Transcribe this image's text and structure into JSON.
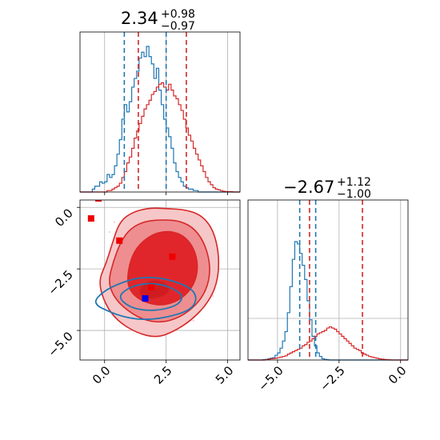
{
  "chart_data": [
    {
      "type": "histogram",
      "panel": "marginal-x",
      "title": {
        "median": "2.34",
        "plus": "+0.98",
        "minus": "−0.97"
      },
      "xlim": [
        -1.0,
        5.5
      ],
      "grid": true,
      "series": [
        {
          "color": "#1f77b4",
          "bin_start": -1.0,
          "bin_width": 0.1,
          "density": [
            0,
            0,
            0,
            0,
            0,
            0.02,
            0.04,
            0.04,
            0.07,
            0.06,
            0.07,
            0.12,
            0.1,
            0.12,
            0.18,
            0.26,
            0.36,
            0.5,
            0.6,
            0.55,
            0.62,
            0.72,
            0.78,
            0.83,
            0.92,
            0.96,
            0.93,
            1.0,
            0.93,
            0.88,
            0.78,
            0.85,
            0.7,
            0.6,
            0.5,
            0.44,
            0.38,
            0.3,
            0.2,
            0.14,
            0.1,
            0.07,
            0.04,
            0.03,
            0.02,
            0.02,
            0.01,
            0.01,
            0,
            0,
            0,
            0,
            0,
            0,
            0,
            0,
            0,
            0,
            0,
            0,
            0,
            0,
            0,
            0,
            0
          ],
          "quantile_lines": [
            0.8,
            2.5
          ]
        },
        {
          "color": "#d62728",
          "bin_start": -1.0,
          "bin_width": 0.1,
          "density": [
            0,
            0,
            0,
            0,
            0,
            0,
            0,
            0,
            0,
            0,
            0,
            0.01,
            0.01,
            0.02,
            0.03,
            0.04,
            0.06,
            0.1,
            0.14,
            0.2,
            0.24,
            0.3,
            0.37,
            0.42,
            0.47,
            0.52,
            0.57,
            0.6,
            0.63,
            0.67,
            0.69,
            0.72,
            0.74,
            0.75,
            0.72,
            0.7,
            0.74,
            0.7,
            0.66,
            0.64,
            0.6,
            0.56,
            0.5,
            0.44,
            0.39,
            0.35,
            0.3,
            0.26,
            0.22,
            0.18,
            0.14,
            0.1,
            0.07,
            0.05,
            0.03,
            0.02,
            0.015,
            0.01,
            0.005,
            0.003,
            0.002,
            0.002,
            0,
            0,
            0
          ],
          "quantile_lines": [
            1.37,
            3.32
          ]
        }
      ]
    },
    {
      "type": "histogram",
      "panel": "marginal-y",
      "title": {
        "median": "−2.67",
        "plus": "+1.12",
        "minus": "−1.00"
      },
      "xlim": [
        -6.2,
        0.3
      ],
      "grid": true,
      "series": [
        {
          "color": "#1f77b4",
          "bin_start": -6.2,
          "bin_width": 0.1,
          "density": [
            0,
            0,
            0,
            0,
            0,
            0,
            0.003,
            0.005,
            0.01,
            0.015,
            0.02,
            0.04,
            0.06,
            0.1,
            0.16,
            0.24,
            0.4,
            0.62,
            0.85,
            1.0,
            0.98,
            0.9,
            0.8,
            0.68,
            0.5,
            0.34,
            0.2,
            0.12,
            0.06,
            0.03,
            0.01,
            0.005,
            0.002,
            0,
            0,
            0,
            0,
            0,
            0,
            0,
            0,
            0,
            0,
            0,
            0,
            0,
            0,
            0,
            0,
            0,
            0,
            0,
            0,
            0,
            0,
            0,
            0,
            0,
            0,
            0,
            0,
            0,
            0,
            0,
            0
          ],
          "quantile_lines": [
            -4.1,
            -3.45
          ]
        },
        {
          "color": "#d62728",
          "bin_start": -6.2,
          "bin_width": 0.1,
          "density": [
            0,
            0,
            0,
            0,
            0,
            0,
            0,
            0.003,
            0.005,
            0.01,
            0.012,
            0.015,
            0.02,
            0.025,
            0.03,
            0.035,
            0.05,
            0.06,
            0.07,
            0.08,
            0.09,
            0.1,
            0.12,
            0.13,
            0.15,
            0.16,
            0.18,
            0.2,
            0.22,
            0.23,
            0.24,
            0.25,
            0.27,
            0.28,
            0.27,
            0.26,
            0.24,
            0.22,
            0.2,
            0.18,
            0.16,
            0.14,
            0.12,
            0.1,
            0.09,
            0.08,
            0.06,
            0.05,
            0.04,
            0.03,
            0.025,
            0.02,
            0.015,
            0.01,
            0.008,
            0.005,
            0.003,
            0.002,
            0,
            0,
            0,
            0,
            0,
            0,
            0
          ],
          "quantile_lines": [
            -3.7,
            -1.55
          ]
        }
      ]
    },
    {
      "type": "contour",
      "panel": "joint",
      "xlim": [
        -1.0,
        5.5
      ],
      "ylim": [
        -6.2,
        0.3
      ],
      "xticks": [
        "0.0",
        "2.5",
        "5.0"
      ],
      "yticks": [
        "0.0",
        "−2.5",
        "−5.0"
      ],
      "grid": true,
      "contour_sets": [
        {
          "color": "#d62728",
          "filled": true,
          "levels": [
            {
              "fill": "#f6c7c8",
              "points": [
                [
                  -0.25,
                  -3.0
                ],
                [
                  0.05,
                  -2.3
                ],
                [
                  0.3,
                  -1.5
                ],
                [
                  0.6,
                  -0.6
                ],
                [
                  1.1,
                  -0.2
                ],
                [
                  1.8,
                  -0.02
                ],
                [
                  2.6,
                  -0.05
                ],
                [
                  3.3,
                  -0.1
                ],
                [
                  3.9,
                  -0.3
                ],
                [
                  4.35,
                  -0.8
                ],
                [
                  4.6,
                  -1.6
                ],
                [
                  4.65,
                  -2.5
                ],
                [
                  4.5,
                  -3.3
                ],
                [
                  4.1,
                  -4.0
                ],
                [
                  3.5,
                  -4.6
                ],
                [
                  2.8,
                  -5.05
                ],
                [
                  2.1,
                  -5.3
                ],
                [
                  1.3,
                  -5.1
                ],
                [
                  0.5,
                  -4.6
                ],
                [
                  0.0,
                  -3.9
                ]
              ]
            },
            {
              "fill": "#ee8e90",
              "points": [
                [
                  0.15,
                  -3.0
                ],
                [
                  0.35,
                  -2.2
                ],
                [
                  0.65,
                  -1.4
                ],
                [
                  1.05,
                  -0.85
                ],
                [
                  1.65,
                  -0.55
                ],
                [
                  2.4,
                  -0.5
                ],
                [
                  3.1,
                  -0.55
                ],
                [
                  3.7,
                  -0.9
                ],
                [
                  4.1,
                  -1.55
                ],
                [
                  4.3,
                  -2.4
                ],
                [
                  4.2,
                  -3.2
                ],
                [
                  3.8,
                  -3.9
                ],
                [
                  3.1,
                  -4.45
                ],
                [
                  2.3,
                  -4.7
                ],
                [
                  1.5,
                  -4.55
                ],
                [
                  0.8,
                  -4.1
                ],
                [
                  0.35,
                  -3.6
                ]
              ]
            },
            {
              "fill": "#e1262b",
              "points": [
                [
                  0.9,
                  -3.0
                ],
                [
                  1.05,
                  -2.1
                ],
                [
                  1.4,
                  -1.5
                ],
                [
                  2.0,
                  -1.05
                ],
                [
                  2.7,
                  -0.95
                ],
                [
                  3.3,
                  -1.2
                ],
                [
                  3.7,
                  -1.8
                ],
                [
                  3.8,
                  -2.6
                ],
                [
                  3.55,
                  -3.3
                ],
                [
                  3.0,
                  -3.8
                ],
                [
                  2.3,
                  -4.0
                ],
                [
                  1.6,
                  -3.85
                ],
                [
                  1.1,
                  -3.5
                ]
              ]
            },
            {
              "fill": "#d01c20",
              "points": [
                [
                  1.35,
                  -3.35
                ],
                [
                  1.75,
                  -2.95
                ],
                [
                  2.3,
                  -2.95
                ],
                [
                  2.7,
                  -3.25
                ],
                [
                  2.5,
                  -3.6
                ],
                [
                  1.9,
                  -3.75
                ],
                [
                  1.5,
                  -3.65
                ]
              ]
            }
          ]
        },
        {
          "color": "#1f77b4",
          "filled": false,
          "levels": [
            {
              "points": [
                [
                  -0.4,
                  -3.75
                ],
                [
                  0.05,
                  -3.35
                ],
                [
                  0.7,
                  -3.05
                ],
                [
                  1.4,
                  -2.85
                ],
                [
                  2.2,
                  -2.85
                ],
                [
                  3.0,
                  -3.05
                ],
                [
                  3.6,
                  -3.35
                ],
                [
                  3.75,
                  -3.75
                ],
                [
                  3.5,
                  -4.15
                ],
                [
                  2.8,
                  -4.4
                ],
                [
                  2.0,
                  -4.55
                ],
                [
                  1.3,
                  -4.55
                ],
                [
                  0.6,
                  -4.4
                ],
                [
                  0.0,
                  -4.15
                ],
                [
                  -0.3,
                  -4.0
                ]
              ]
            },
            {
              "points": [
                [
                  0.55,
                  -3.65
                ],
                [
                  0.9,
                  -3.3
                ],
                [
                  1.5,
                  -3.1
                ],
                [
                  2.2,
                  -3.1
                ],
                [
                  2.8,
                  -3.3
                ],
                [
                  3.2,
                  -3.6
                ],
                [
                  3.0,
                  -3.95
                ],
                [
                  2.4,
                  -4.15
                ],
                [
                  1.7,
                  -4.2
                ],
                [
                  1.0,
                  -4.05
                ]
              ]
            }
          ]
        }
      ],
      "markers": [
        {
          "x": -0.55,
          "y": -0.45,
          "color": "#ee0000"
        },
        {
          "x": 0.6,
          "y": -1.35,
          "color": "#ee0000"
        },
        {
          "x": 2.75,
          "y": -2.0,
          "color": "#ee0000"
        },
        {
          "x": 1.9,
          "y": -3.25,
          "color": "#ee0000"
        },
        {
          "x": 1.65,
          "y": -3.7,
          "color": "#0000ee"
        }
      ]
    }
  ]
}
